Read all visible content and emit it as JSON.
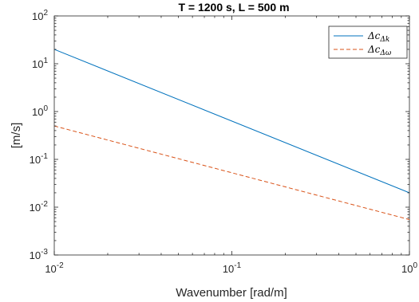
{
  "chart_data": {
    "type": "line",
    "title": "T = 1200 s, L = 500 m",
    "xlabel": "Wavenumber [rad/m]",
    "ylabel": "[m/s]",
    "xscale": "log",
    "yscale": "log",
    "xlim": [
      0.01,
      1
    ],
    "ylim": [
      0.001,
      100
    ],
    "grid": false,
    "legend_position": "top-right",
    "x_ticks": [
      {
        "value": 0.01,
        "base": "10",
        "exp": "-2"
      },
      {
        "value": 0.1,
        "base": "10",
        "exp": "-1"
      },
      {
        "value": 1,
        "base": "10",
        "exp": "0"
      }
    ],
    "y_ticks": [
      {
        "value": 0.001,
        "base": "10",
        "exp": "-3"
      },
      {
        "value": 0.01,
        "base": "10",
        "exp": "-2"
      },
      {
        "value": 0.1,
        "base": "10",
        "exp": "-1"
      },
      {
        "value": 1,
        "base": "10",
        "exp": "0"
      },
      {
        "value": 10,
        "base": "10",
        "exp": "1"
      },
      {
        "value": 100,
        "base": "10",
        "exp": "2"
      }
    ],
    "series": [
      {
        "name": "Δc",
        "subscript": "Δk",
        "color": "#0072BD",
        "dash": "solid",
        "x": [
          0.01,
          1
        ],
        "y": [
          20,
          0.02
        ]
      },
      {
        "name": "Δc",
        "subscript": "Δω",
        "color": "#D95319",
        "dash": "dashed",
        "x": [
          0.01,
          1
        ],
        "y": [
          0.5,
          0.0055
        ]
      }
    ]
  }
}
